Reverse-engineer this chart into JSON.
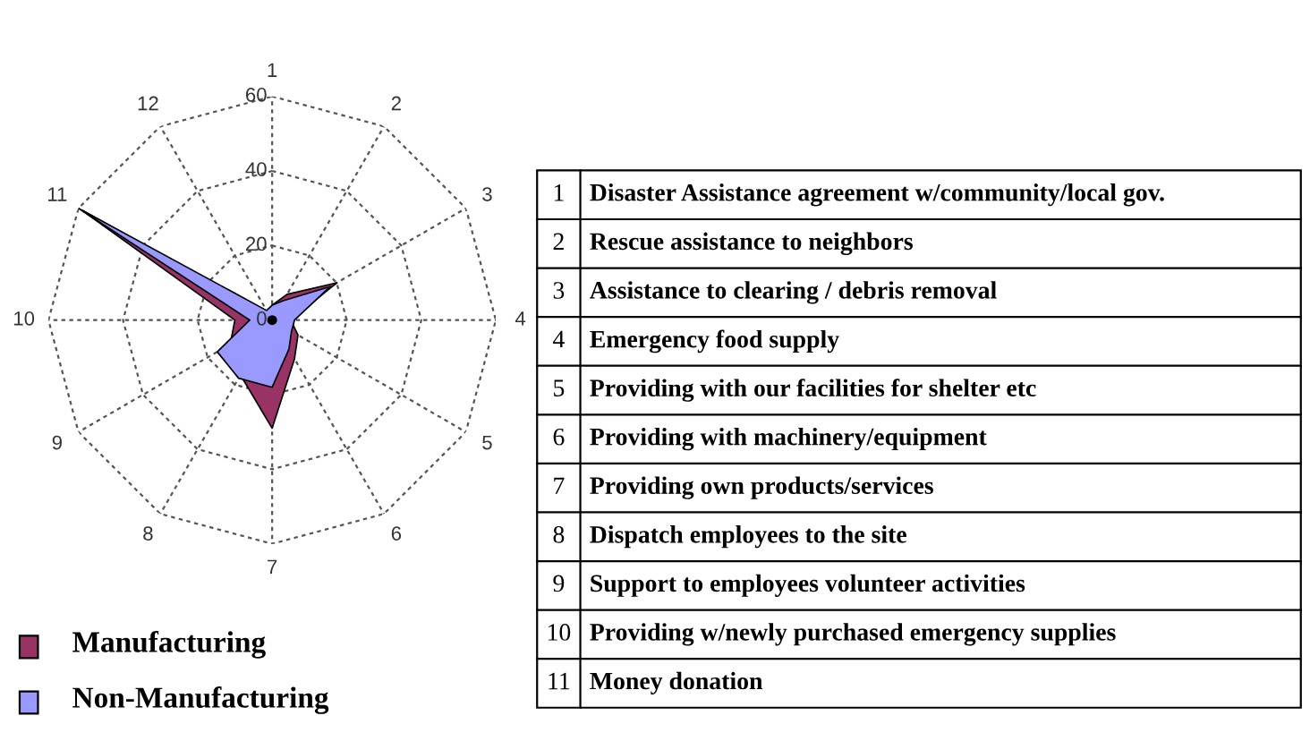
{
  "chart_data": {
    "type": "radar",
    "categories": [
      "1",
      "2",
      "3",
      "4",
      "5",
      "6",
      "7",
      "8",
      "9",
      "10",
      "11",
      "12"
    ],
    "series": [
      {
        "name": "Manufacturing",
        "color": "#993366",
        "values": [
          4,
          8,
          20,
          5,
          8,
          12,
          29,
          17,
          13,
          10,
          59,
          2
        ]
      },
      {
        "name": "Non-Manufacturing",
        "color": "#9999ff",
        "values": [
          4,
          6,
          18,
          6,
          6,
          9,
          18,
          18,
          17,
          6,
          60,
          3
        ]
      }
    ],
    "ylim": [
      0,
      60
    ],
    "yticks": [
      0,
      20,
      40,
      60
    ],
    "grid": true,
    "legend": "bottom left",
    "annotations": [
      "Disaster Assistance agreement w/community/local gov.",
      "Rescue assistance to neighbors",
      "Assistance to clearing / debris removal",
      "Emergency food supply",
      "Providing with our facilities for shelter etc",
      "Providing with machinery/equipment",
      "Providing own products/services",
      "Dispatch employees to the site",
      "Support to employees volunteer activities",
      "Providing w/newly purchased emergency supplies",
      "Money donation"
    ]
  }
}
